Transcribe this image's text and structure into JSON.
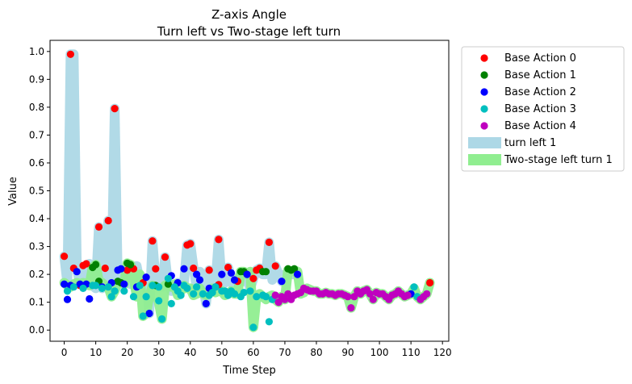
{
  "chart_data": {
    "type": "scatter",
    "title": [
      "Z-axis Angle",
      "Turn left vs Two-stage left turn"
    ],
    "xlabel": "Time Step",
    "ylabel": "Value",
    "xlim": [
      -4.5,
      122
    ],
    "ylim": [
      -0.04,
      1.04
    ],
    "xticks": [
      0,
      10,
      20,
      30,
      40,
      50,
      60,
      70,
      80,
      90,
      100,
      110,
      120
    ],
    "yticks": [
      0.0,
      0.1,
      0.2,
      0.3,
      0.4,
      0.5,
      0.6,
      0.7,
      0.8,
      0.9,
      1.0
    ],
    "grid": false,
    "legend_position": "outside-top-right",
    "bands": [
      {
        "name": "turn left 1",
        "color": "#add8e6",
        "x": [
          0,
          1,
          2,
          3,
          4,
          5,
          6,
          7,
          8,
          9,
          10,
          11,
          12,
          13,
          14,
          15,
          16,
          17,
          18,
          19,
          20,
          21,
          22,
          23,
          24,
          25,
          26,
          27,
          28,
          29,
          30,
          31,
          32,
          33,
          34,
          35,
          36,
          37,
          38,
          39,
          40,
          41,
          42,
          43,
          44,
          45,
          46,
          47,
          48,
          49,
          50,
          51,
          52,
          53,
          54,
          55,
          56,
          57,
          58,
          59,
          60,
          61,
          62,
          63,
          64,
          65,
          66,
          67,
          68,
          69,
          70,
          71,
          72,
          73,
          74
        ],
        "y": [
          0.265,
          0.165,
          0.99,
          0.99,
          0.222,
          0.165,
          0.16,
          0.232,
          0.238,
          0.16,
          0.15,
          0.37,
          0.15,
          0.222,
          0.393,
          0.165,
          0.795,
          0.165,
          0.175,
          0.21,
          0.215,
          0.165,
          0.165,
          0.23,
          0.17,
          0.17,
          0.18,
          0.06,
          0.32,
          0.175,
          0.155,
          0.155,
          0.262,
          0.16,
          0.14,
          0.15,
          0.17,
          0.155,
          0.17,
          0.305,
          0.31,
          0.225,
          0.155,
          0.21,
          0.165,
          0.095,
          0.215,
          0.155,
          0.165,
          0.325,
          0.165,
          0.17,
          0.225,
          0.19,
          0.14,
          0.175,
          0.2,
          0.175,
          0.18,
          0.15,
          0.185,
          0.215,
          0.222,
          0.2,
          0.2,
          0.315,
          0.18,
          0.23,
          0.2,
          0.175,
          0.2,
          0.2,
          0.2,
          0.2,
          0.2
        ]
      },
      {
        "name": "Two-stage left turn 1",
        "color": "#90ee90",
        "x": [
          0,
          1,
          2,
          3,
          4,
          5,
          6,
          7,
          8,
          9,
          10,
          11,
          12,
          13,
          14,
          15,
          16,
          17,
          18,
          19,
          20,
          21,
          22,
          23,
          24,
          25,
          26,
          27,
          28,
          29,
          30,
          31,
          32,
          33,
          34,
          35,
          36,
          37,
          38,
          39,
          40,
          41,
          42,
          43,
          44,
          45,
          46,
          47,
          48,
          49,
          50,
          51,
          52,
          53,
          54,
          55,
          56,
          57,
          58,
          59,
          60,
          61,
          62,
          63,
          64,
          65,
          66,
          67,
          68,
          69,
          70,
          71,
          72,
          73,
          74,
          75,
          76,
          77,
          78,
          79,
          80,
          81,
          82,
          83,
          84,
          85,
          86,
          87,
          88,
          89,
          90,
          91,
          92,
          93,
          94,
          95,
          96,
          97,
          98,
          99,
          100,
          101,
          102,
          103,
          104,
          105,
          106,
          107,
          108,
          109,
          110,
          111,
          112,
          113,
          114,
          115,
          116
        ],
        "y": [
          0.17,
          0.16,
          0.155,
          0.165,
          0.17,
          0.165,
          0.17,
          0.165,
          0.16,
          0.225,
          0.235,
          0.175,
          0.17,
          0.16,
          0.155,
          0.12,
          0.14,
          0.17,
          0.17,
          0.165,
          0.24,
          0.235,
          0.19,
          0.12,
          0.2,
          0.05,
          0.06,
          0.12,
          0.16,
          0.155,
          0.1,
          0.04,
          0.16,
          0.165,
          0.155,
          0.165,
          0.125,
          0.14,
          0.16,
          0.15,
          0.15,
          0.125,
          0.13,
          0.15,
          0.13,
          0.125,
          0.135,
          0.15,
          0.135,
          0.14,
          0.14,
          0.125,
          0.13,
          0.14,
          0.13,
          0.13,
          0.21,
          0.21,
          0.2,
          0.21,
          0.01,
          0.12,
          0.13,
          0.12,
          0.11,
          0.12,
          0.125,
          0.11,
          0.1,
          0.12,
          0.11,
          0.215,
          0.21,
          0.215,
          0.21,
          0.13,
          0.135,
          0.15,
          0.145,
          0.14,
          0.14,
          0.13,
          0.13,
          0.135,
          0.13,
          0.13,
          0.125,
          0.13,
          0.13,
          0.125,
          0.12,
          0.08,
          0.12,
          0.14,
          0.13,
          0.14,
          0.145,
          0.13,
          0.11,
          0.135,
          0.13,
          0.13,
          0.12,
          0.11,
          0.125,
          0.13,
          0.14,
          0.13,
          0.12,
          0.125,
          0.13,
          0.15,
          0.12,
          0.11,
          0.12,
          0.13,
          0.17
        ]
      }
    ],
    "series": [
      {
        "name": "Base Action 0",
        "color": "#ff0000",
        "points": [
          [
            0,
            0.265
          ],
          [
            2,
            0.99
          ],
          [
            3,
            0.222
          ],
          [
            5,
            0.16
          ],
          [
            6,
            0.232
          ],
          [
            7,
            0.238
          ],
          [
            11,
            0.37
          ],
          [
            13,
            0.222
          ],
          [
            14,
            0.393
          ],
          [
            16,
            0.795
          ],
          [
            20,
            0.215
          ],
          [
            22,
            0.22
          ],
          [
            25,
            0.17
          ],
          [
            28,
            0.32
          ],
          [
            29,
            0.22
          ],
          [
            32,
            0.262
          ],
          [
            39,
            0.305
          ],
          [
            40,
            0.31
          ],
          [
            41,
            0.222
          ],
          [
            46,
            0.215
          ],
          [
            49,
            0.325
          ],
          [
            49,
            0.163
          ],
          [
            52,
            0.225
          ],
          [
            55,
            0.175
          ],
          [
            60,
            0.185
          ],
          [
            61,
            0.215
          ],
          [
            62,
            0.222
          ],
          [
            65,
            0.315
          ],
          [
            67,
            0.23
          ],
          [
            116,
            0.17
          ]
        ]
      },
      {
        "name": "Base Action 1",
        "color": "#008000",
        "points": [
          [
            9,
            0.225
          ],
          [
            10,
            0.235
          ],
          [
            11,
            0.175
          ],
          [
            17,
            0.175
          ],
          [
            18,
            0.17
          ],
          [
            20,
            0.24
          ],
          [
            21,
            0.235
          ],
          [
            29,
            0.16
          ],
          [
            33,
            0.165
          ],
          [
            56,
            0.21
          ],
          [
            57,
            0.21
          ],
          [
            63,
            0.21
          ],
          [
            64,
            0.21
          ],
          [
            71,
            0.22
          ],
          [
            72,
            0.215
          ],
          [
            73,
            0.22
          ]
        ]
      },
      {
        "name": "Base Action 2",
        "color": "#0000ff",
        "points": [
          [
            0,
            0.165
          ],
          [
            1,
            0.11
          ],
          [
            2,
            0.16
          ],
          [
            4,
            0.21
          ],
          [
            5,
            0.165
          ],
          [
            7,
            0.165
          ],
          [
            8,
            0.112
          ],
          [
            12,
            0.155
          ],
          [
            15,
            0.17
          ],
          [
            17,
            0.215
          ],
          [
            18,
            0.22
          ],
          [
            19,
            0.165
          ],
          [
            23,
            0.155
          ],
          [
            26,
            0.19
          ],
          [
            27,
            0.06
          ],
          [
            34,
            0.195
          ],
          [
            36,
            0.17
          ],
          [
            38,
            0.22
          ],
          [
            42,
            0.2
          ],
          [
            43,
            0.18
          ],
          [
            45,
            0.095
          ],
          [
            46,
            0.15
          ],
          [
            48,
            0.155
          ],
          [
            50,
            0.2
          ],
          [
            53,
            0.205
          ],
          [
            54,
            0.18
          ],
          [
            58,
            0.2
          ],
          [
            69,
            0.175
          ],
          [
            74,
            0.2
          ],
          [
            110,
            0.13
          ]
        ]
      },
      {
        "name": "Base Action 3",
        "color": "#00bfbf",
        "points": [
          [
            1,
            0.14
          ],
          [
            3,
            0.155
          ],
          [
            6,
            0.15
          ],
          [
            9,
            0.16
          ],
          [
            10,
            0.16
          ],
          [
            12,
            0.15
          ],
          [
            14,
            0.155
          ],
          [
            15,
            0.12
          ],
          [
            16,
            0.14
          ],
          [
            19,
            0.14
          ],
          [
            22,
            0.12
          ],
          [
            24,
            0.16
          ],
          [
            25,
            0.05
          ],
          [
            26,
            0.12
          ],
          [
            28,
            0.16
          ],
          [
            30,
            0.155
          ],
          [
            30,
            0.105
          ],
          [
            31,
            0.04
          ],
          [
            33,
            0.185
          ],
          [
            34,
            0.095
          ],
          [
            35,
            0.155
          ],
          [
            36,
            0.14
          ],
          [
            37,
            0.125
          ],
          [
            38,
            0.16
          ],
          [
            39,
            0.15
          ],
          [
            41,
            0.13
          ],
          [
            42,
            0.155
          ],
          [
            44,
            0.13
          ],
          [
            46,
            0.125
          ],
          [
            47,
            0.135
          ],
          [
            48,
            0.155
          ],
          [
            50,
            0.14
          ],
          [
            51,
            0.14
          ],
          [
            52,
            0.125
          ],
          [
            53,
            0.14
          ],
          [
            54,
            0.13
          ],
          [
            56,
            0.12
          ],
          [
            57,
            0.135
          ],
          [
            59,
            0.14
          ],
          [
            60,
            0.01
          ],
          [
            61,
            0.12
          ],
          [
            63,
            0.125
          ],
          [
            64,
            0.12
          ],
          [
            65,
            0.03
          ],
          [
            66,
            0.11
          ],
          [
            111,
            0.155
          ],
          [
            112,
            0.12
          ]
        ]
      },
      {
        "name": "Base Action 4",
        "color": "#bf00bf",
        "points": [
          [
            67,
            0.125
          ],
          [
            68,
            0.1
          ],
          [
            69,
            0.12
          ],
          [
            70,
            0.11
          ],
          [
            71,
            0.13
          ],
          [
            72,
            0.11
          ],
          [
            73,
            0.125
          ],
          [
            74,
            0.13
          ],
          [
            75,
            0.135
          ],
          [
            76,
            0.15
          ],
          [
            77,
            0.145
          ],
          [
            78,
            0.14
          ],
          [
            79,
            0.14
          ],
          [
            80,
            0.14
          ],
          [
            81,
            0.13
          ],
          [
            82,
            0.13
          ],
          [
            83,
            0.135
          ],
          [
            84,
            0.13
          ],
          [
            85,
            0.13
          ],
          [
            86,
            0.125
          ],
          [
            87,
            0.13
          ],
          [
            88,
            0.13
          ],
          [
            89,
            0.125
          ],
          [
            90,
            0.12
          ],
          [
            91,
            0.08
          ],
          [
            92,
            0.12
          ],
          [
            93,
            0.14
          ],
          [
            94,
            0.13
          ],
          [
            95,
            0.14
          ],
          [
            96,
            0.145
          ],
          [
            97,
            0.13
          ],
          [
            98,
            0.11
          ],
          [
            99,
            0.135
          ],
          [
            100,
            0.13
          ],
          [
            101,
            0.13
          ],
          [
            102,
            0.12
          ],
          [
            103,
            0.11
          ],
          [
            104,
            0.125
          ],
          [
            105,
            0.13
          ],
          [
            106,
            0.14
          ],
          [
            107,
            0.13
          ],
          [
            108,
            0.12
          ],
          [
            109,
            0.125
          ],
          [
            113,
            0.11
          ],
          [
            114,
            0.12
          ],
          [
            115,
            0.13
          ]
        ]
      }
    ]
  }
}
